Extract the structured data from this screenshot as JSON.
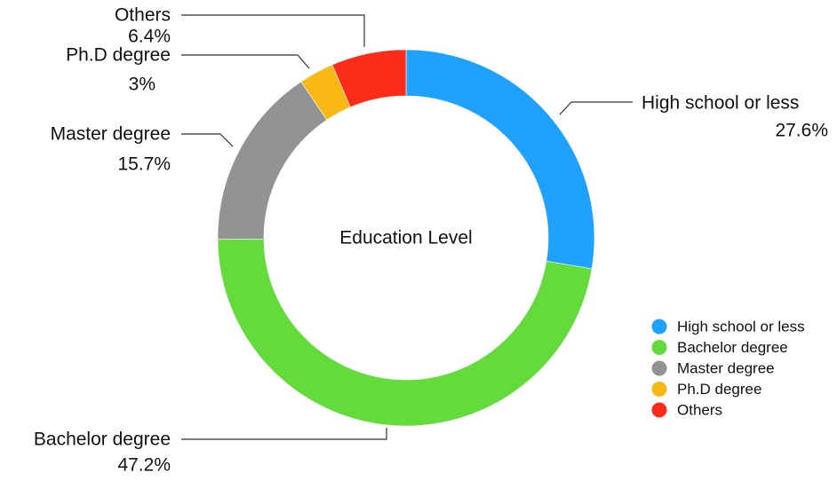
{
  "chart_data": {
    "type": "pie",
    "title": "Education Level",
    "categories": [
      "High school or less",
      "Bachelor degree",
      "Master degree",
      "Ph.D degree",
      "Others"
    ],
    "values": [
      27.6,
      47.2,
      15.7,
      3,
      6.4
    ],
    "labels": [
      "27.6%",
      "47.2%",
      "15.7%",
      "3%",
      "6.4%"
    ],
    "colors": [
      "#1ea1ff",
      "#62db3b",
      "#939393",
      "#f9b814",
      "#fe2c1b"
    ],
    "donut": true,
    "start": "12 o'clock",
    "direction": "clockwise",
    "legend": "bottom-right"
  }
}
